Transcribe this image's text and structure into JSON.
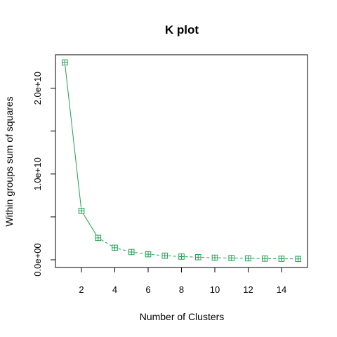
{
  "chart_data": {
    "type": "line",
    "title": "K plot",
    "xlabel": "Number of Clusters",
    "ylabel": "Within groups sum of squares",
    "x": [
      1,
      2,
      3,
      4,
      5,
      6,
      7,
      8,
      9,
      10,
      11,
      12,
      13,
      14,
      15
    ],
    "series": [
      {
        "values": [
          23000000000,
          5700000000,
          2550000000,
          1400000000,
          900000000,
          650000000,
          480000000,
          370000000,
          300000000,
          240000000,
          200000000,
          170000000,
          140000000,
          120000000,
          100000000
        ],
        "color": "#22a050",
        "marker": "square-plus",
        "line_style": "solid-then-dashed"
      }
    ],
    "xlim": [
      0.44,
      15.56
    ],
    "ylim": [
      -900000000,
      23900000000
    ],
    "x_ticks": [
      2,
      4,
      6,
      8,
      10,
      12,
      14
    ],
    "x_tick_labels": [
      "2",
      "4",
      "6",
      "8",
      "10",
      "12",
      "14"
    ],
    "y_ticks": [
      0,
      5000000000,
      10000000000,
      15000000000,
      20000000000
    ],
    "y_tick_labels": [
      "0.0e+00",
      "",
      "1.0e+10",
      "",
      "2.0e+10"
    ],
    "grid": false,
    "legend": "none"
  }
}
